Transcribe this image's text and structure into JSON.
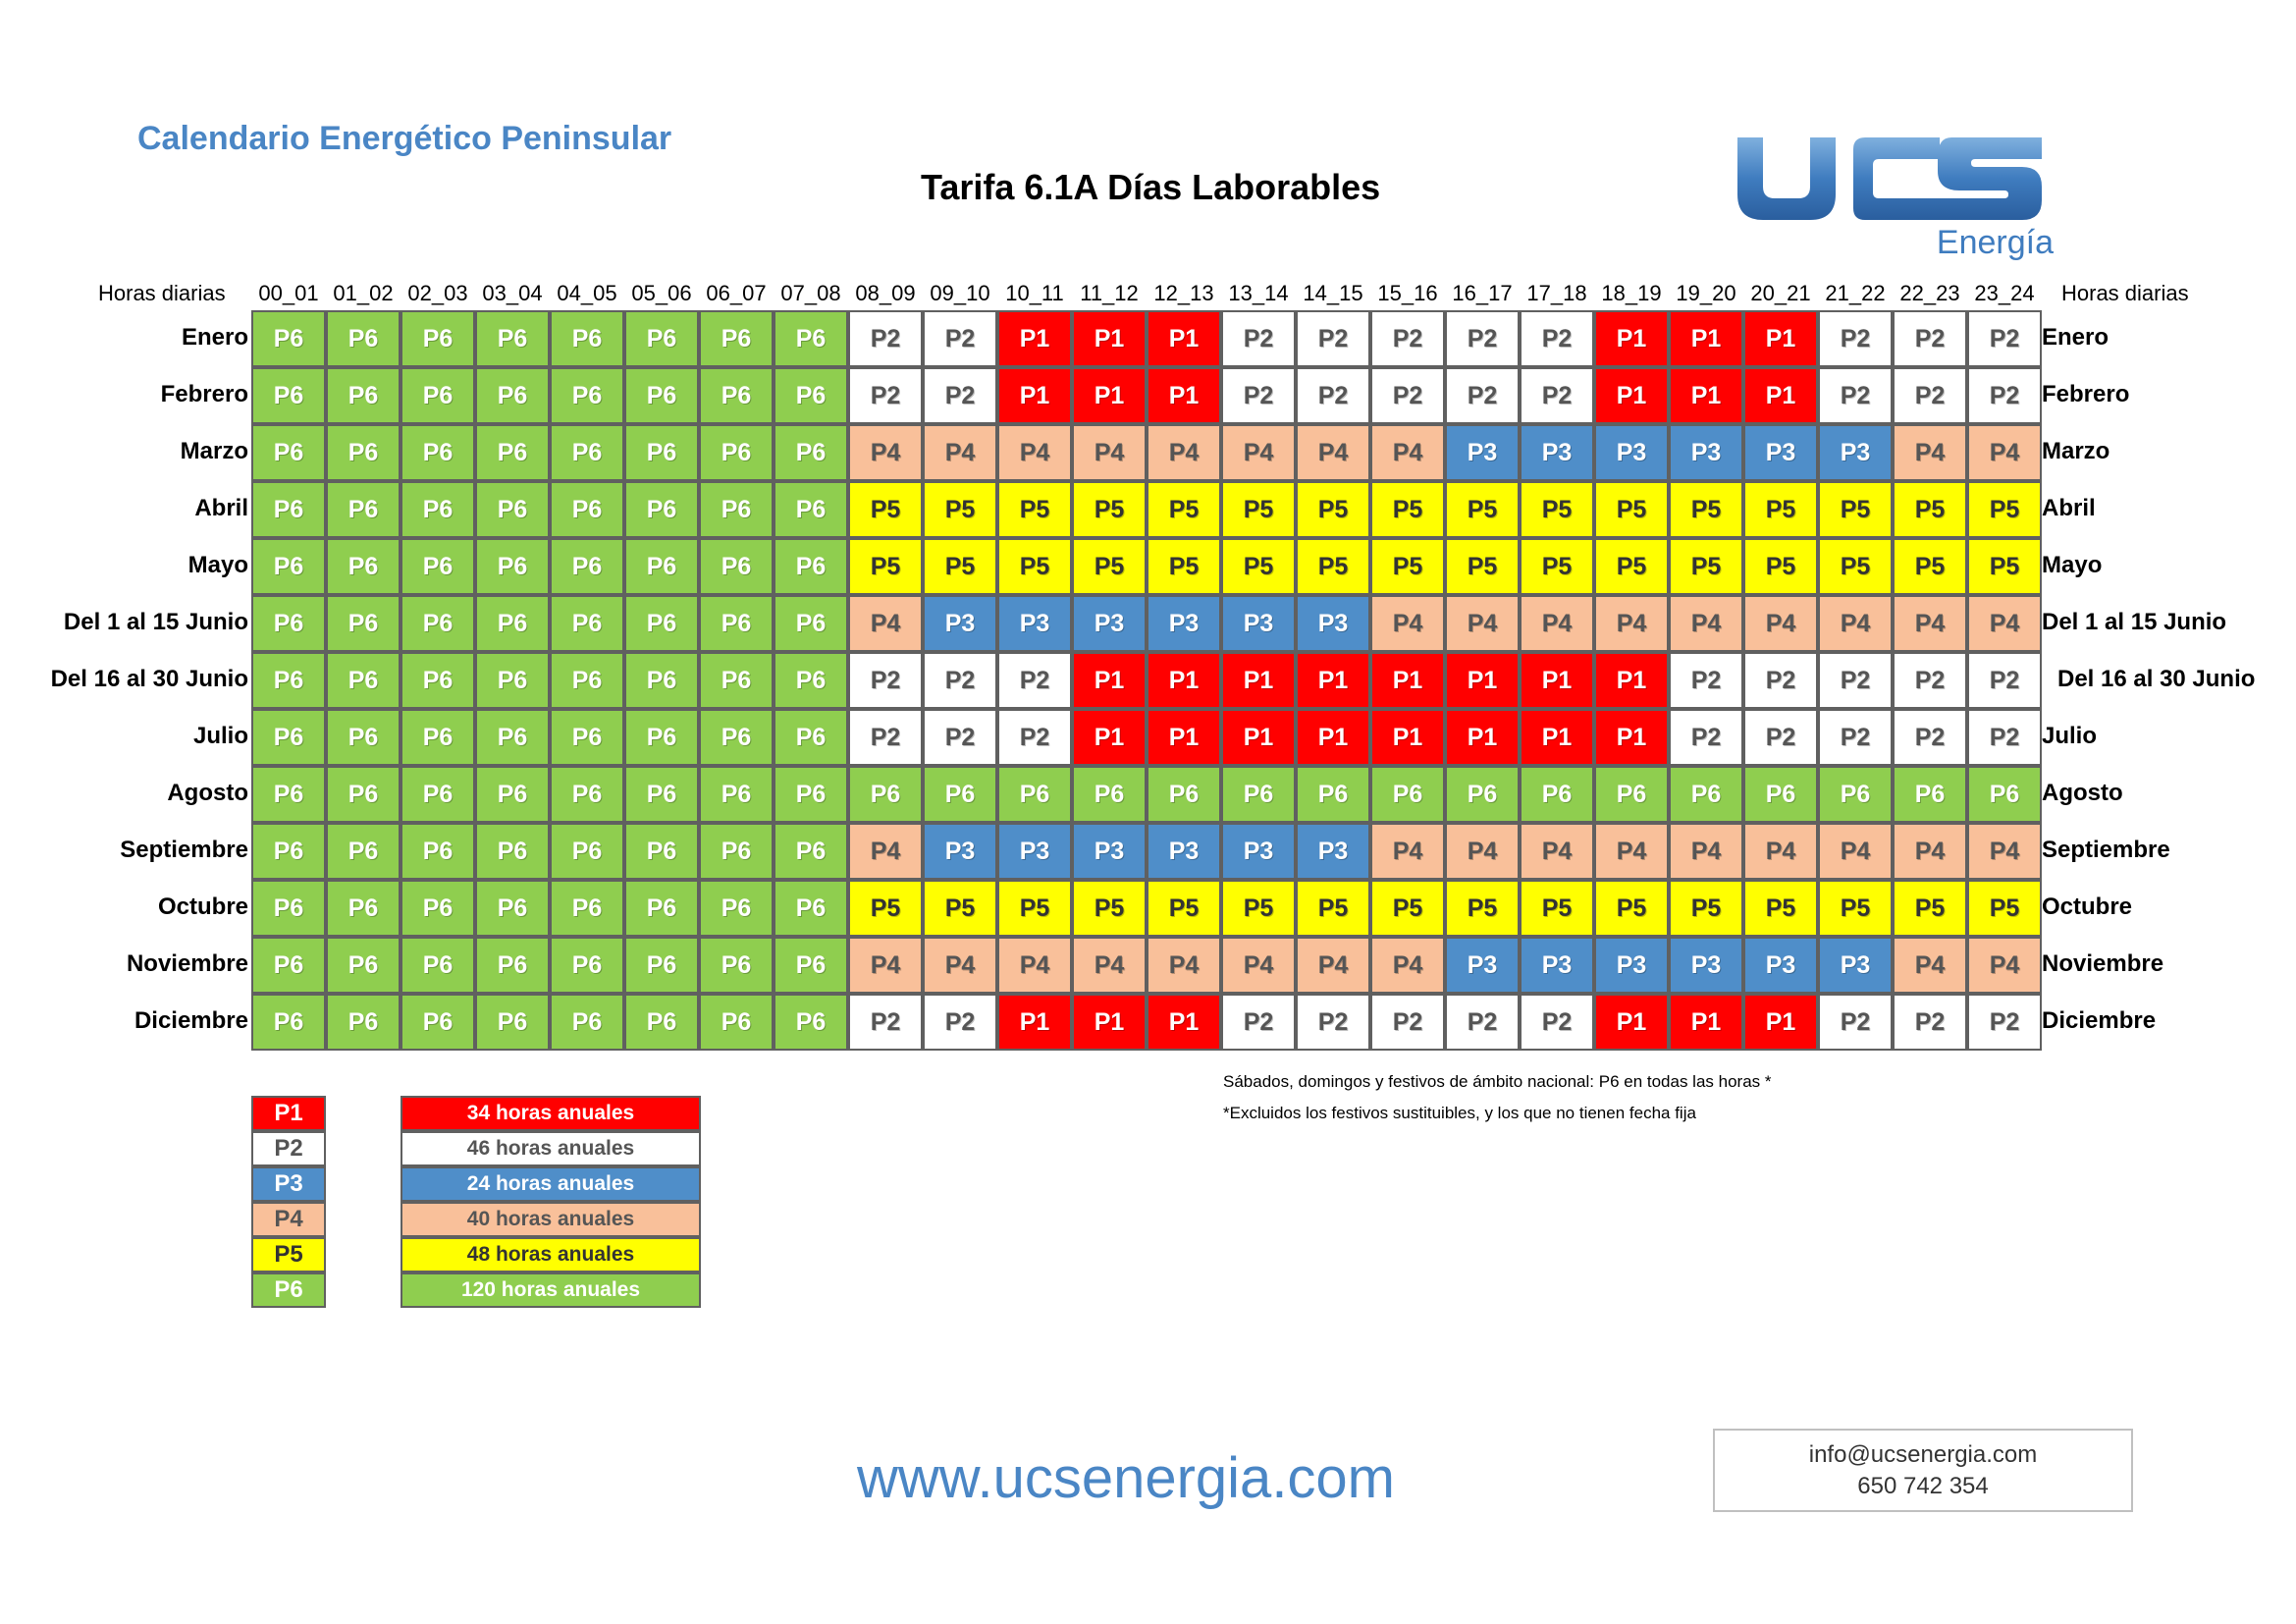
{
  "header": {
    "site_title": "Calendario Energético Peninsular",
    "page_title": "Tarifa  6.1A Días Laborables",
    "logo_text": "UCS",
    "logo_subtext": "Energía"
  },
  "hours_label": "Horas diarias",
  "hours": [
    "00_01",
    "01_02",
    "02_03",
    "03_04",
    "04_05",
    "05_06",
    "06_07",
    "07_08",
    "08_09",
    "09_10",
    "10_11",
    "11_12",
    "12_13",
    "13_14",
    "14_15",
    "15_16",
    "16_17",
    "17_18",
    "18_19",
    "19_20",
    "20_21",
    "21_22",
    "22_23",
    "23_24"
  ],
  "months": [
    {
      "name": "Enero",
      "periods": [
        "P6",
        "P6",
        "P6",
        "P6",
        "P6",
        "P6",
        "P6",
        "P6",
        "P2",
        "P2",
        "P1",
        "P1",
        "P1",
        "P2",
        "P2",
        "P2",
        "P2",
        "P2",
        "P1",
        "P1",
        "P1",
        "P2",
        "P2",
        "P2"
      ]
    },
    {
      "name": "Febrero",
      "periods": [
        "P6",
        "P6",
        "P6",
        "P6",
        "P6",
        "P6",
        "P6",
        "P6",
        "P2",
        "P2",
        "P1",
        "P1",
        "P1",
        "P2",
        "P2",
        "P2",
        "P2",
        "P2",
        "P1",
        "P1",
        "P1",
        "P2",
        "P2",
        "P2"
      ]
    },
    {
      "name": "Marzo",
      "periods": [
        "P6",
        "P6",
        "P6",
        "P6",
        "P6",
        "P6",
        "P6",
        "P6",
        "P4",
        "P4",
        "P4",
        "P4",
        "P4",
        "P4",
        "P4",
        "P4",
        "P3",
        "P3",
        "P3",
        "P3",
        "P3",
        "P3",
        "P4",
        "P4"
      ]
    },
    {
      "name": "Abril",
      "periods": [
        "P6",
        "P6",
        "P6",
        "P6",
        "P6",
        "P6",
        "P6",
        "P6",
        "P5",
        "P5",
        "P5",
        "P5",
        "P5",
        "P5",
        "P5",
        "P5",
        "P5",
        "P5",
        "P5",
        "P5",
        "P5",
        "P5",
        "P5",
        "P5"
      ]
    },
    {
      "name": "Mayo",
      "periods": [
        "P6",
        "P6",
        "P6",
        "P6",
        "P6",
        "P6",
        "P6",
        "P6",
        "P5",
        "P5",
        "P5",
        "P5",
        "P5",
        "P5",
        "P5",
        "P5",
        "P5",
        "P5",
        "P5",
        "P5",
        "P5",
        "P5",
        "P5",
        "P5"
      ]
    },
    {
      "name": "Del 1 al 15 Junio",
      "periods": [
        "P6",
        "P6",
        "P6",
        "P6",
        "P6",
        "P6",
        "P6",
        "P6",
        "P4",
        "P3",
        "P3",
        "P3",
        "P3",
        "P3",
        "P3",
        "P4",
        "P4",
        "P4",
        "P4",
        "P4",
        "P4",
        "P4",
        "P4",
        "P4"
      ]
    },
    {
      "name": "Del 16 al 30 Junio",
      "periods": [
        "P6",
        "P6",
        "P6",
        "P6",
        "P6",
        "P6",
        "P6",
        "P6",
        "P2",
        "P2",
        "P2",
        "P1",
        "P1",
        "P1",
        "P1",
        "P1",
        "P1",
        "P1",
        "P1",
        "P2",
        "P2",
        "P2",
        "P2",
        "P2"
      ]
    },
    {
      "name": "Julio",
      "periods": [
        "P6",
        "P6",
        "P6",
        "P6",
        "P6",
        "P6",
        "P6",
        "P6",
        "P2",
        "P2",
        "P2",
        "P1",
        "P1",
        "P1",
        "P1",
        "P1",
        "P1",
        "P1",
        "P1",
        "P2",
        "P2",
        "P2",
        "P2",
        "P2"
      ]
    },
    {
      "name": "Agosto",
      "periods": [
        "P6",
        "P6",
        "P6",
        "P6",
        "P6",
        "P6",
        "P6",
        "P6",
        "P6",
        "P6",
        "P6",
        "P6",
        "P6",
        "P6",
        "P6",
        "P6",
        "P6",
        "P6",
        "P6",
        "P6",
        "P6",
        "P6",
        "P6",
        "P6"
      ]
    },
    {
      "name": "Septiembre",
      "periods": [
        "P6",
        "P6",
        "P6",
        "P6",
        "P6",
        "P6",
        "P6",
        "P6",
        "P4",
        "P3",
        "P3",
        "P3",
        "P3",
        "P3",
        "P3",
        "P4",
        "P4",
        "P4",
        "P4",
        "P4",
        "P4",
        "P4",
        "P4",
        "P4"
      ]
    },
    {
      "name": "Octubre",
      "periods": [
        "P6",
        "P6",
        "P6",
        "P6",
        "P6",
        "P6",
        "P6",
        "P6",
        "P5",
        "P5",
        "P5",
        "P5",
        "P5",
        "P5",
        "P5",
        "P5",
        "P5",
        "P5",
        "P5",
        "P5",
        "P5",
        "P5",
        "P5",
        "P5"
      ]
    },
    {
      "name": "Noviembre",
      "periods": [
        "P6",
        "P6",
        "P6",
        "P6",
        "P6",
        "P6",
        "P6",
        "P6",
        "P4",
        "P4",
        "P4",
        "P4",
        "P4",
        "P4",
        "P4",
        "P4",
        "P3",
        "P3",
        "P3",
        "P3",
        "P3",
        "P3",
        "P4",
        "P4"
      ]
    },
    {
      "name": "Diciembre",
      "periods": [
        "P6",
        "P6",
        "P6",
        "P6",
        "P6",
        "P6",
        "P6",
        "P6",
        "P2",
        "P2",
        "P1",
        "P1",
        "P1",
        "P2",
        "P2",
        "P2",
        "P2",
        "P2",
        "P1",
        "P1",
        "P1",
        "P2",
        "P2",
        "P2"
      ]
    }
  ],
  "period_colors": {
    "P1": {
      "bg": "#ff0000",
      "fg": "#ffffff"
    },
    "P2": {
      "bg": "#ffffff",
      "fg": "#555555"
    },
    "P3": {
      "bg": "#4f8ec9",
      "fg": "#ffffff"
    },
    "P4": {
      "bg": "#f9c09a",
      "fg": "#555555"
    },
    "P5": {
      "bg": "#ffff00",
      "fg": "#333333"
    },
    "P6": {
      "bg": "#8fce4f",
      "fg": "#ffffff"
    }
  },
  "legend": [
    {
      "code": "P1",
      "hours": "34 horas anuales"
    },
    {
      "code": "P2",
      "hours": "46 horas anuales"
    },
    {
      "code": "P3",
      "hours": "24 horas anuales"
    },
    {
      "code": "P4",
      "hours": "40 horas anuales"
    },
    {
      "code": "P5",
      "hours": "48 horas anuales"
    },
    {
      "code": "P6",
      "hours": "120 horas anuales"
    }
  ],
  "notes": [
    "Sábados, domingos y festivos de ámbito nacional: P6 en todas las horas *",
    "*Excluidos los festivos sustituibles, y los que no tienen fecha fija"
  ],
  "footer": {
    "website": "www.ucsenergia.com",
    "email": "info@ucsenergia.com",
    "phone": "650 742 354"
  }
}
